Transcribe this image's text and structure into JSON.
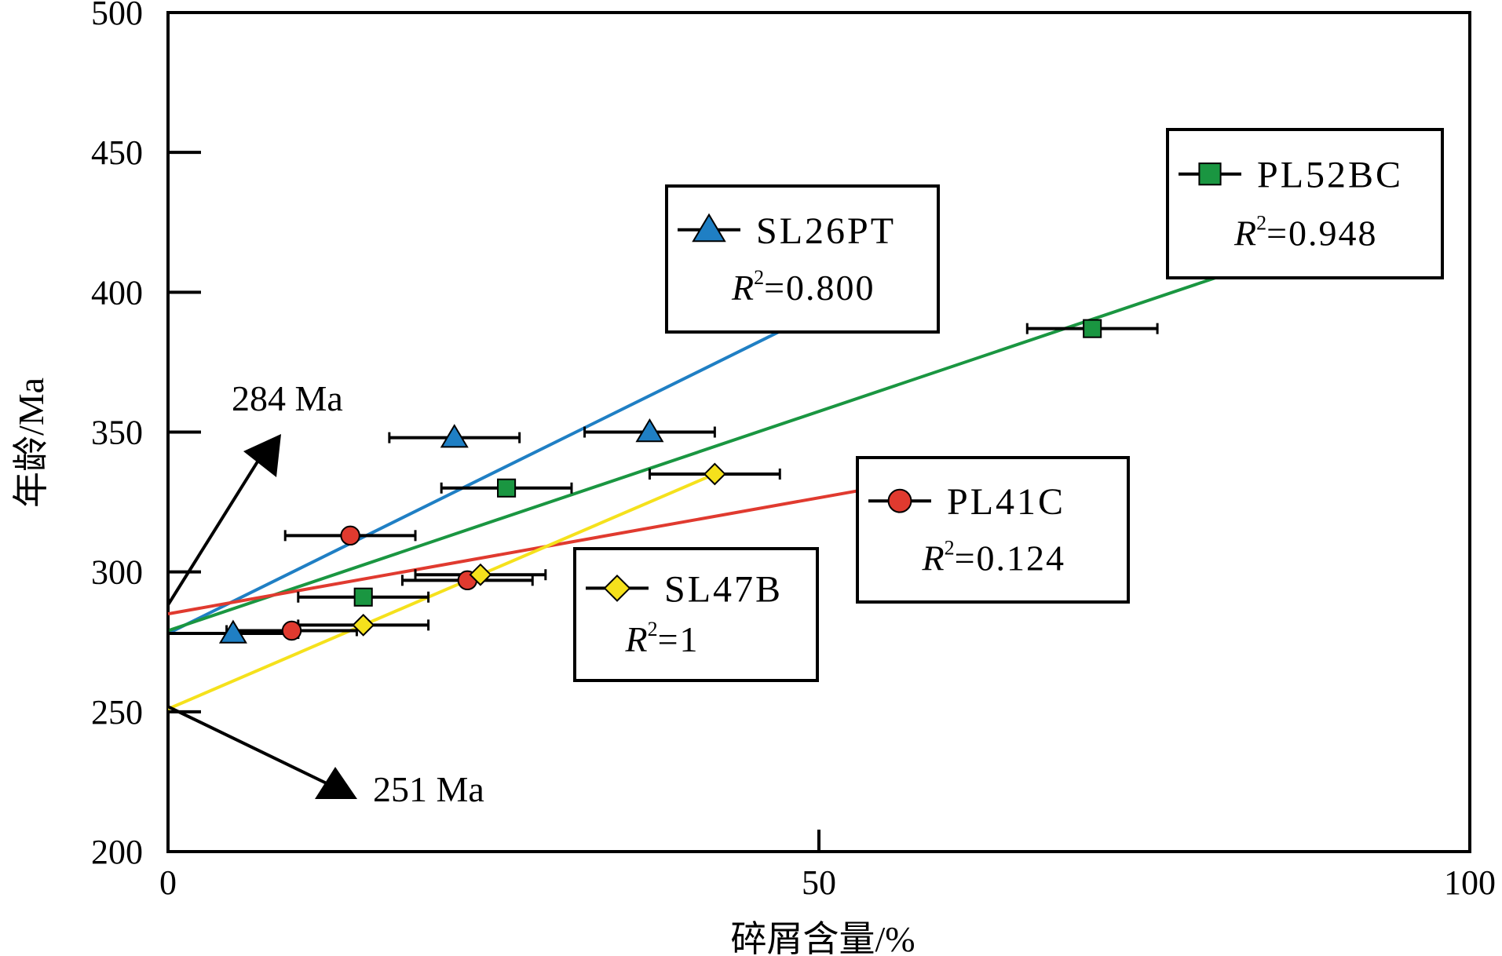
{
  "chart_data": {
    "type": "scatter",
    "xlabel": "碎屑含量/%",
    "ylabel": "年龄/Ma",
    "xlim": [
      0,
      100
    ],
    "ylim": [
      200,
      500
    ],
    "x_ticks": [
      "0",
      "50",
      "100"
    ],
    "y_ticks": [
      "200",
      "250",
      "300",
      "350",
      "400",
      "450",
      "500"
    ],
    "grid": false,
    "series": [
      {
        "name": "SL26PT",
        "marker": "triangle",
        "color": "#1f7fc4",
        "r2_label": "R",
        "r2_value": "=0.800",
        "points": [
          {
            "x": 5,
            "y": 278,
            "xerr": 5
          },
          {
            "x": 22,
            "y": 348,
            "xerr": 5
          },
          {
            "x": 37,
            "y": 350,
            "xerr": 5
          }
        ],
        "fit": {
          "x0": 0,
          "y0": 278,
          "x1": 47,
          "y1": 386
        }
      },
      {
        "name": "PL52BC",
        "marker": "square",
        "color": "#1a9641",
        "r2_label": "R",
        "r2_value": "=0.948",
        "points": [
          {
            "x": 15,
            "y": 291,
            "xerr": 5
          },
          {
            "x": 26,
            "y": 330,
            "xerr": 5
          },
          {
            "x": 71,
            "y": 387,
            "xerr": 5
          }
        ],
        "fit": {
          "x0": 0,
          "y0": 279,
          "x1": 81,
          "y1": 406
        }
      },
      {
        "name": "PL41C",
        "marker": "circle",
        "color": "#e03a2f",
        "r2_label": "R",
        "r2_value": "=0.124",
        "points": [
          {
            "x": 9.5,
            "y": 279,
            "xerr": 5
          },
          {
            "x": 14,
            "y": 313,
            "xerr": 5
          },
          {
            "x": 23,
            "y": 297,
            "xerr": 5
          }
        ],
        "fit": {
          "x0": 0,
          "y0": 285,
          "x1": 53,
          "y1": 329
        }
      },
      {
        "name": "SL47B",
        "marker": "diamond",
        "color": "#f5e11c",
        "r2_label": "R",
        "r2_value": "=1",
        "points": [
          {
            "x": 15,
            "y": 281,
            "xerr": 5
          },
          {
            "x": 24,
            "y": 299,
            "xerr": 5
          },
          {
            "x": 42,
            "y": 335,
            "xerr": 5
          }
        ],
        "fit": {
          "x0": 0,
          "y0": 251,
          "x1": 42,
          "y1": 335
        }
      }
    ],
    "annotations": [
      {
        "text": "284 Ma",
        "points_to_y": 284
      },
      {
        "text": "251 Ma",
        "points_to_y": 251
      }
    ]
  }
}
